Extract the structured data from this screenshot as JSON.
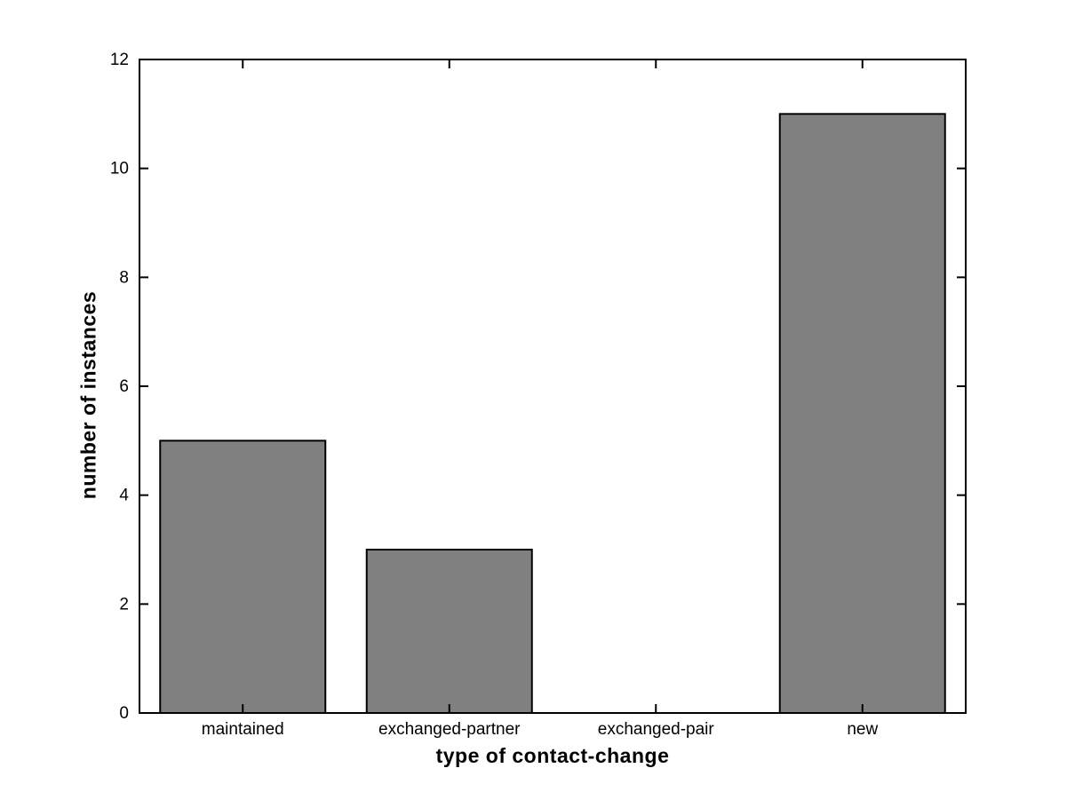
{
  "chart_data": {
    "type": "bar",
    "title": "",
    "categories": [
      "maintained",
      "exchanged-partner",
      "exchanged-pair",
      "new"
    ],
    "values": [
      5,
      3,
      0,
      11
    ],
    "xlabel": "type of contact-change",
    "ylabel": "number of instances",
    "ylim": [
      0,
      12
    ],
    "yticks": [
      0,
      2,
      4,
      6,
      8,
      10,
      12
    ],
    "bar_width_fraction": 0.8,
    "grid": false,
    "colors": {
      "bar_fill": "#808080",
      "bar_edge": "#000000",
      "axis": "#000000",
      "background": "#ffffff",
      "text": "#000000"
    }
  }
}
